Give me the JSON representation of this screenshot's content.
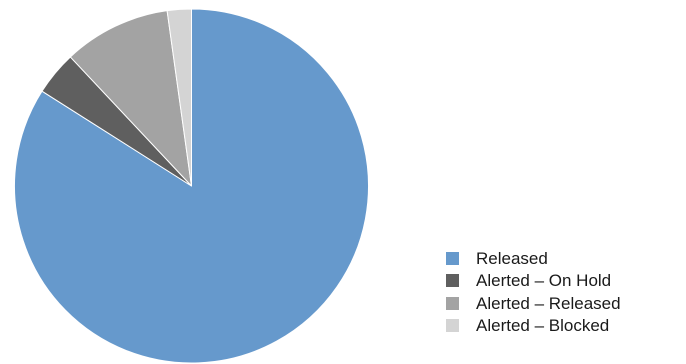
{
  "chart_data": {
    "type": "pie",
    "title": "",
    "start_angle_deg": 0,
    "direction": "clockwise",
    "legend_position": "bottom-right",
    "slices": [
      {
        "label": "Released",
        "value": 84,
        "color": "#6699cc"
      },
      {
        "label": "Alerted – On Hold",
        "value": 4,
        "color": "#5f5f5f"
      },
      {
        "label": "Alerted – Released",
        "value": 9.8,
        "color": "#a3a3a3"
      },
      {
        "label": "Alerted – Blocked",
        "value": 2.2,
        "color": "#d4d4d4"
      }
    ]
  }
}
